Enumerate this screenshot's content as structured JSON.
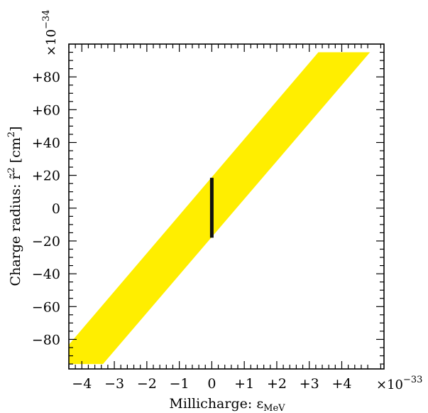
{
  "chart_data": {
    "type": "area",
    "title": "",
    "xlabel": "Millicharge: ε",
    "xlabel_sub": "MeV",
    "ylabel": "Charge radius: r̃",
    "ylabel_sup": "2",
    "ylabel_unit_open": " [cm",
    "ylabel_unit_sup": "2",
    "ylabel_unit_close": "]",
    "x_scale": {
      "prefix": "×10",
      "exponent": "−33"
    },
    "y_scale": {
      "prefix": "×10",
      "exponent": "−34"
    },
    "xlim": [
      -4.4,
      5.3
    ],
    "ylim": [
      -98,
      100
    ],
    "x_ticks": [
      {
        "value": -4,
        "label": "−4"
      },
      {
        "value": -3,
        "label": "−3"
      },
      {
        "value": -2,
        "label": "−2"
      },
      {
        "value": -1,
        "label": "−1"
      },
      {
        "value": 0,
        "label": "0"
      },
      {
        "value": 1,
        "label": "+1"
      },
      {
        "value": 2,
        "label": "+2"
      },
      {
        "value": 3,
        "label": "+3"
      },
      {
        "value": 4,
        "label": "+4"
      }
    ],
    "y_ticks": [
      {
        "value": 80,
        "label": "+80"
      },
      {
        "value": 60,
        "label": "+60"
      },
      {
        "value": 40,
        "label": "+40"
      },
      {
        "value": 20,
        "label": "+20"
      },
      {
        "value": 0,
        "label": "0"
      },
      {
        "value": -20,
        "label": "−20"
      },
      {
        "value": -40,
        "label": "−40"
      },
      {
        "value": -60,
        "label": "−60"
      },
      {
        "value": -80,
        "label": "−80"
      }
    ],
    "band": {
      "color": "#FFEE00",
      "polygon": [
        {
          "x": -4.91,
          "y": -95
        },
        {
          "x": -3.35,
          "y": -95
        },
        {
          "x": 4.87,
          "y": 95
        },
        {
          "x": 3.28,
          "y": 95
        }
      ]
    },
    "bar": {
      "color": "#111111",
      "x": 0,
      "y_min": -18,
      "y_max": 18.5
    },
    "grid": false,
    "legend": "none"
  }
}
